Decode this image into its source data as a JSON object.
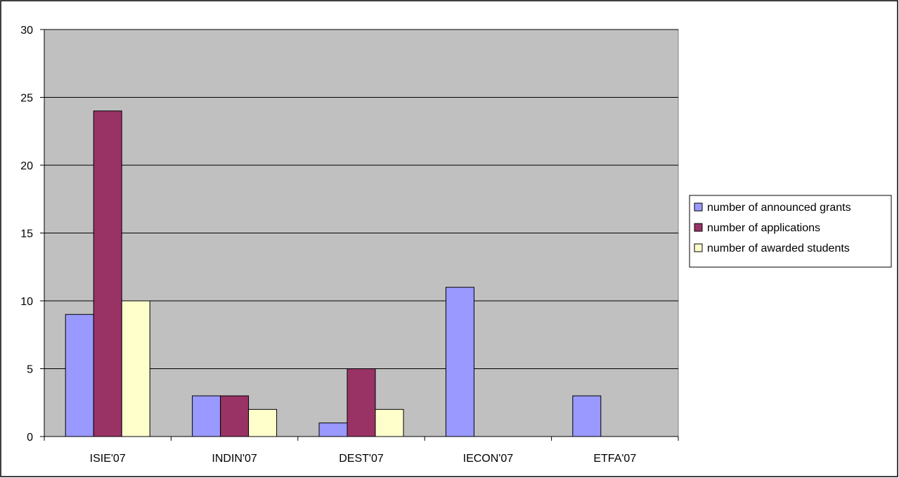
{
  "chart_data": {
    "type": "bar",
    "title": "",
    "xlabel": "",
    "ylabel": "",
    "ylim": [
      0,
      30
    ],
    "yticks": [
      0,
      5,
      10,
      15,
      20,
      25,
      30
    ],
    "grid": true,
    "plot_background": "#C0C0C0",
    "legend_position": "right",
    "categories": [
      "ISIE'07",
      "INDIN'07",
      "DEST'07",
      "IECON'07",
      "ETFA'07"
    ],
    "series": [
      {
        "name": "number of announced grants",
        "color": "#9999FF",
        "values": [
          9,
          3,
          1,
          11,
          3
        ]
      },
      {
        "name": "number of applications",
        "color": "#993366",
        "values": [
          24,
          3,
          5,
          0,
          0
        ]
      },
      {
        "name": "number of awarded students",
        "color": "#FFFFCC",
        "values": [
          10,
          2,
          2,
          0,
          0
        ]
      }
    ]
  }
}
